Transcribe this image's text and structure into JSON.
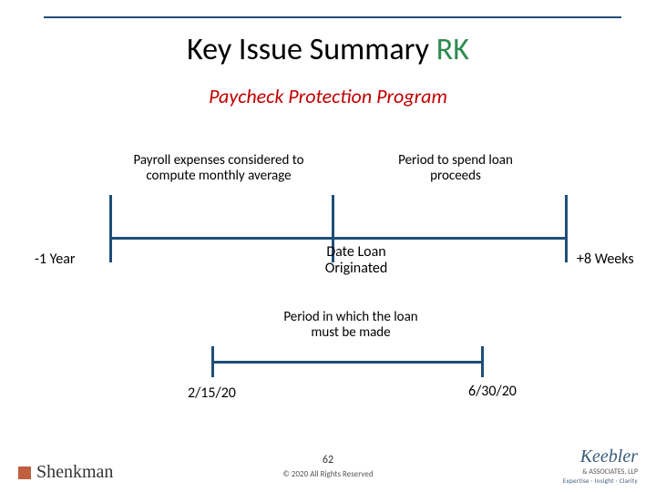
{
  "title_main": "Key Issue Summary ",
  "title_suffix": "RK",
  "subtitle": "Paycheck Protection Program",
  "timeline1": {
    "segment1_label": "Payroll expenses considered to compute monthly average",
    "segment2_label": "Period to spend loan proceeds",
    "left_label": "-1 Year",
    "mid_label": "Date Loan Originated",
    "right_label": "+8 Weeks",
    "line_color": "#1f4e79"
  },
  "timeline2": {
    "label": "Period in which the loan must be made",
    "left_date": "2/15/20",
    "right_date": "6/30/20"
  },
  "footer": {
    "page": "62",
    "copyright": "© 2020 All Rights Reserved",
    "logo_left": "Shenkman",
    "logo_right": "Keebler",
    "logo_right_assoc": "& ASSOCIATES, LLP",
    "logo_right_tag": "Expertise · Insight · Clarity"
  },
  "colors": {
    "rule": "#1f4e79",
    "subtitle": "#c00000",
    "rk": "#2e8b4f",
    "bg": "#ffffff"
  }
}
